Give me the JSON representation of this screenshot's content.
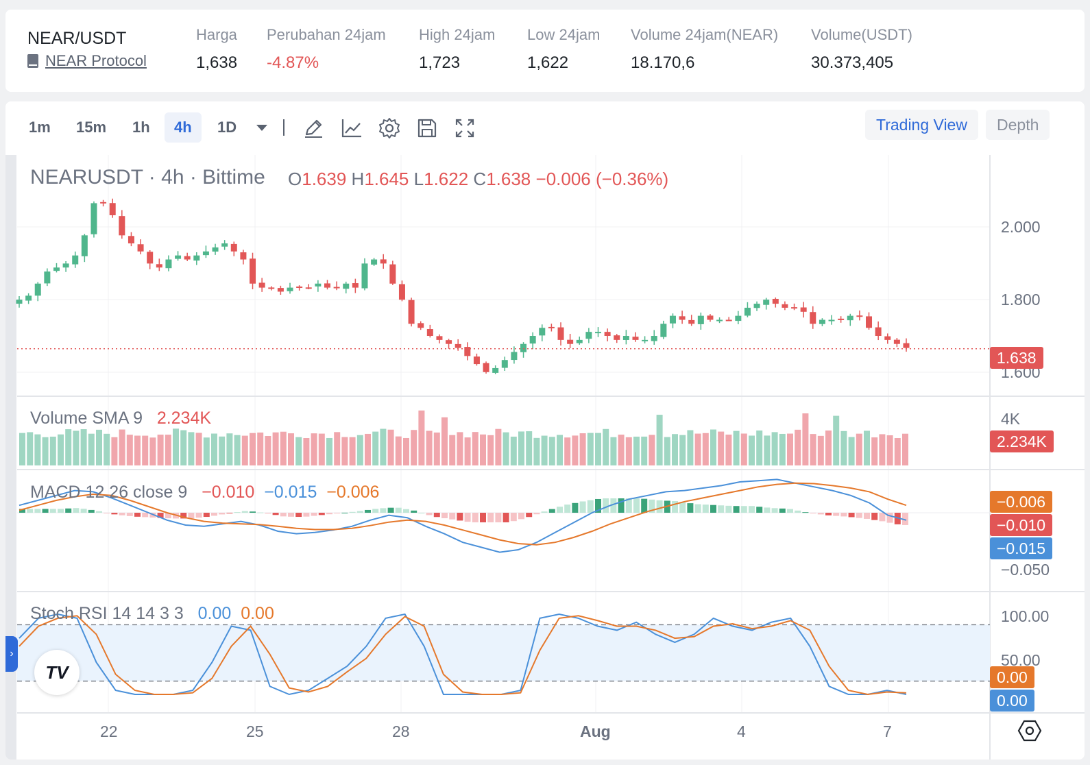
{
  "header": {
    "pair": "NEAR/USDT",
    "protocol": "NEAR Protocol",
    "stats": [
      {
        "label": "Harga",
        "value": "1,638",
        "negative": false
      },
      {
        "label": "Perubahan 24jam",
        "value": "-4.87%",
        "negative": true
      },
      {
        "label": "High 24jam",
        "value": "1,723",
        "negative": false
      },
      {
        "label": "Low 24jam",
        "value": "1,622",
        "negative": false
      },
      {
        "label": "Volume 24jam(NEAR)",
        "value": "18.170,6",
        "negative": false
      },
      {
        "label": "Volume(USDT)",
        "value": "30.373,405",
        "negative": false
      }
    ]
  },
  "toolbar": {
    "timeframes": [
      "1m",
      "15m",
      "1h",
      "4h",
      "1D"
    ],
    "active_timeframe": "4h",
    "tools": [
      "pencil-icon",
      "line-chart-icon",
      "gear-icon",
      "save-icon",
      "fullscreen-icon"
    ],
    "modes": [
      "Trading View",
      "Depth"
    ],
    "active_mode": "Trading View"
  },
  "main_chart": {
    "title": "NEARUSDT · 4h · Bittime",
    "ohlc": {
      "o_label": "O",
      "o": "1.639",
      "h_label": "H",
      "h": "1.645",
      "l_label": "L",
      "l": "1.622",
      "c_label": "C",
      "c": "1.638",
      "change": "−0.006 (−0.36%)"
    },
    "last_price_tag": "1.638"
  },
  "volume_panel": {
    "title": "Volume SMA 9",
    "value": "2.234K",
    "axis_label": "4K",
    "tag": "2.234K"
  },
  "macd_panel": {
    "title": "MACD 12 26 close 9",
    "v1": "−0.010",
    "v2": "−0.015",
    "v3": "−0.006",
    "tags": [
      "−0.006",
      "−0.010",
      "−0.015"
    ],
    "axis_label": "−0.050"
  },
  "stoch_panel": {
    "title": "Stoch RSI 14 14 3 3",
    "k": "0.00",
    "d": "0.00",
    "axis_labels": [
      "100.00",
      "50.00"
    ],
    "tags": [
      "0.00",
      "0.00"
    ]
  },
  "colors": {
    "up": "#4fb68c",
    "down": "#e25656",
    "blue": "#4a90d9",
    "orange": "#e5782b",
    "accent": "#2f6ad8"
  },
  "chart_data": {
    "type": "candlestick",
    "x_tick_labels": [
      "22",
      "25",
      "28",
      "Aug",
      "4",
      "7"
    ],
    "y_tick_labels": [
      "2.000",
      "1.800",
      "1.600"
    ],
    "ylim": [
      1.52,
      2.12
    ],
    "close_path": [
      1.76,
      1.77,
      1.8,
      1.83,
      1.84,
      1.85,
      1.87,
      1.92,
      2.0,
      2.0,
      1.97,
      1.92,
      1.9,
      1.88,
      1.85,
      1.84,
      1.86,
      1.87,
      1.86,
      1.87,
      1.88,
      1.89,
      1.9,
      1.88,
      1.86,
      1.8,
      1.79,
      1.79,
      1.78,
      1.79,
      1.79,
      1.79,
      1.8,
      1.79,
      1.79,
      1.8,
      1.79,
      1.85,
      1.86,
      1.85,
      1.8,
      1.76,
      1.7,
      1.69,
      1.67,
      1.66,
      1.65,
      1.64,
      1.62,
      1.6,
      1.58,
      1.59,
      1.61,
      1.63,
      1.65,
      1.67,
      1.69,
      1.69,
      1.66,
      1.65,
      1.66,
      1.68,
      1.68,
      1.67,
      1.66,
      1.67,
      1.66,
      1.66,
      1.67,
      1.7,
      1.72,
      1.71,
      1.7,
      1.72,
      1.71,
      1.71,
      1.71,
      1.72,
      1.74,
      1.75,
      1.76,
      1.75,
      1.74,
      1.74,
      1.73,
      1.7,
      1.71,
      1.71,
      1.71,
      1.72,
      1.72,
      1.69,
      1.67,
      1.66,
      1.65,
      1.64
    ],
    "last_price": 1.638,
    "volume_axis_max": 4000,
    "volume_sma9": 2234,
    "macd": {
      "macd": -0.01,
      "signal": -0.015,
      "histogram": -0.006
    },
    "stoch_rsi": {
      "k": 0.0,
      "d": 0.0,
      "upper": 80,
      "lower": 20
    }
  }
}
